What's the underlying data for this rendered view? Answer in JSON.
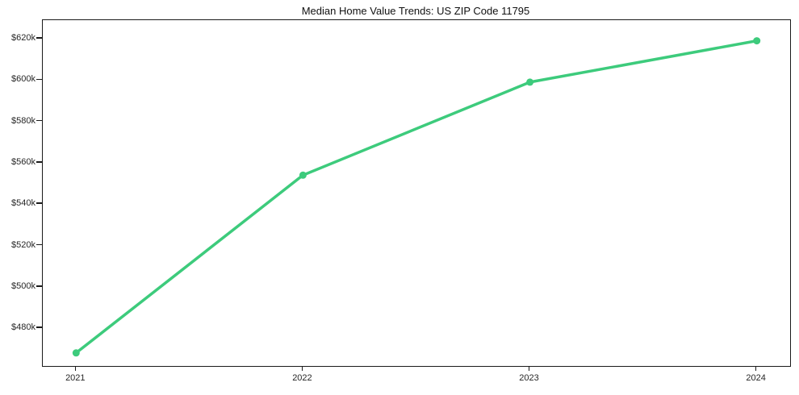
{
  "chart_data": {
    "type": "line",
    "title": "Median Home Value Trends: US ZIP Code 11795",
    "x": [
      2021,
      2022,
      2023,
      2024
    ],
    "x_tick_labels": [
      "2021",
      "2022",
      "2023",
      "2024"
    ],
    "series": [
      {
        "name": "Median home value",
        "values": [
          468000,
          554000,
          599000,
          619000
        ],
        "color": "#3dcb7c",
        "marker": "circle",
        "line_width": 3.5,
        "marker_radius": 4.5
      }
    ],
    "xlabel": "",
    "ylabel": "",
    "y_ticks": [
      480000,
      500000,
      520000,
      540000,
      560000,
      580000,
      600000,
      620000
    ],
    "y_tick_labels": [
      "$480k",
      "$500k",
      "$520k",
      "$540k",
      "$560k",
      "$580k",
      "$600k",
      "$620k"
    ],
    "ylim": [
      461700,
      629000
    ],
    "xlim": [
      2020.853,
      2024.147
    ],
    "grid": false,
    "legend_position": "none",
    "background_color": "#ffffff",
    "axis_color": "#1a1a1a",
    "tick_label_color": "#262626"
  }
}
